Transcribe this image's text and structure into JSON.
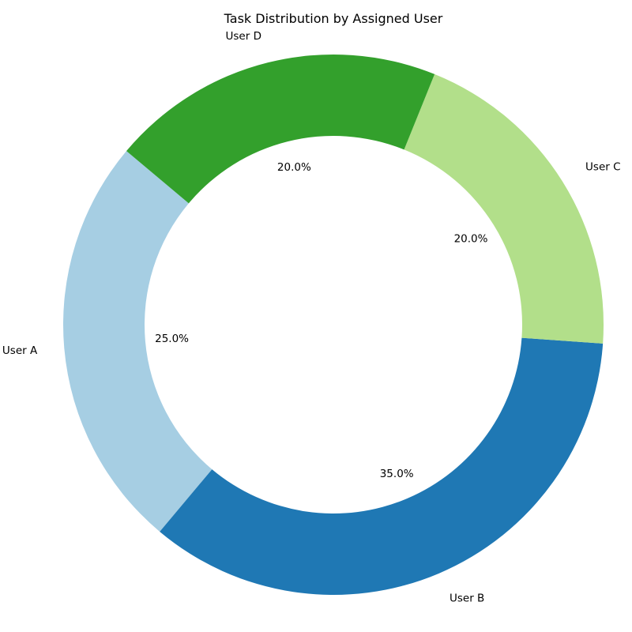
{
  "chart_data": {
    "type": "pie",
    "title": "Task Distribution by Assigned User",
    "categories": [
      "User A",
      "User B",
      "User C",
      "User D"
    ],
    "values": [
      25.0,
      35.0,
      20.0,
      20.0
    ],
    "value_labels": [
      "25.0%",
      "35.0%",
      "20.0%",
      "20.0%"
    ],
    "colors": [
      "#a6cee3",
      "#1f78b4",
      "#b2df8a",
      "#33a02c"
    ],
    "donut": true,
    "legend": "none"
  }
}
